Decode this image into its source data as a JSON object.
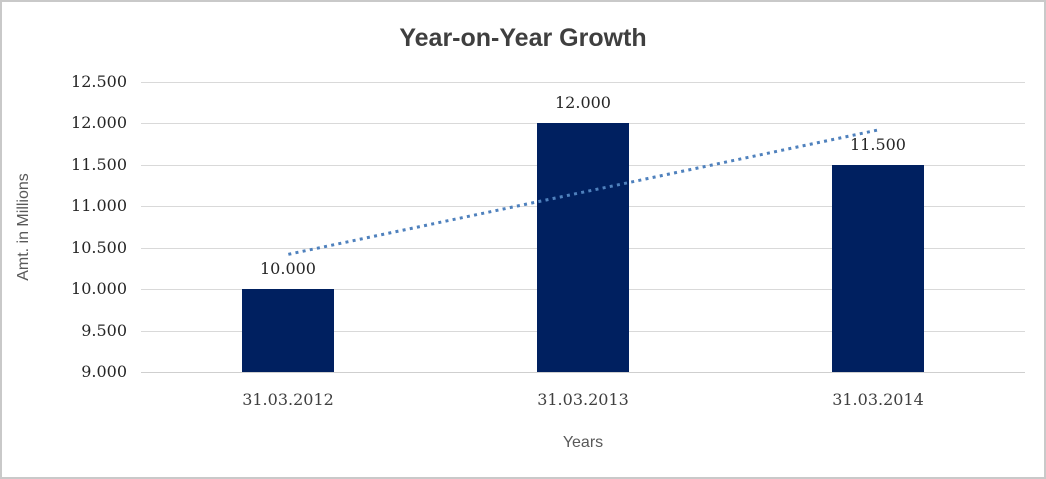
{
  "window": {
    "background": "#ffffff",
    "border_color": "#c9c9c9"
  },
  "chart_data": {
    "type": "bar",
    "title": "Year-on-Year Growth",
    "xlabel": "Years",
    "ylabel": "Amt. in Millions",
    "categories": [
      "31.03.2012",
      "31.03.2013",
      "31.03.2014"
    ],
    "values": [
      10.0,
      12.0,
      11.5
    ],
    "data_labels": [
      "10.000",
      "12.000",
      "11.500"
    ],
    "ylim": [
      9.0,
      12.5
    ],
    "ytick_step": 0.5,
    "ytick_labels": [
      "9.000",
      "9.500",
      "10.000",
      "10.500",
      "11.000",
      "11.500",
      "12.000",
      "12.500"
    ],
    "grid": true,
    "legend_position": "none",
    "colors": {
      "bar": "#002060",
      "gridline": "#d9d9d9",
      "axis_line": "#cfcfcf",
      "trendline": "#4f81bd",
      "title_text": "#3f3f3f",
      "tick_text": "#262626",
      "axis_title_text": "#595959"
    },
    "trendline": {
      "type": "linear",
      "style": "dotted",
      "color": "#4f81bd",
      "start_category_index": 0,
      "end_category_index": 2,
      "start_value": 10.42,
      "end_value": 11.92
    }
  }
}
